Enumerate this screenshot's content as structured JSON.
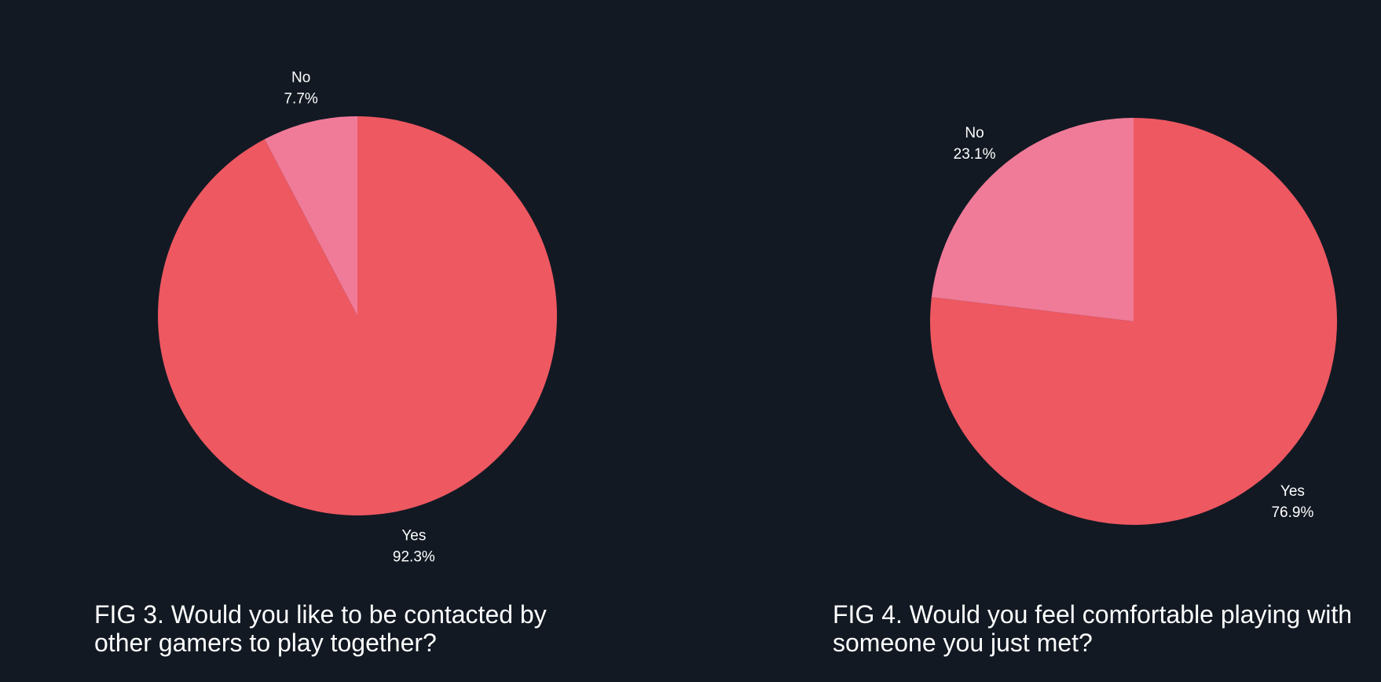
{
  "chart_data": [
    {
      "type": "pie",
      "title_lines": [
        "FIG 3. Would you like to be contacted by",
        "other gamers to play together?"
      ],
      "slices": [
        {
          "label": "Yes",
          "value": 92.3,
          "value_label": "92.3%",
          "color": "#ee5861"
        },
        {
          "label": "No",
          "value": 7.7,
          "value_label": "7.7%",
          "color": "#f07b98"
        }
      ],
      "start_angle": "12 o'clock",
      "direction": "clockwise",
      "label_position": "outside"
    },
    {
      "type": "pie",
      "title_lines": [
        "FIG 4. Would you feel comfortable playing with",
        "someone you just met?"
      ],
      "slices": [
        {
          "label": "Yes",
          "value": 76.9,
          "value_label": "76.9%",
          "color": "#ee5861"
        },
        {
          "label": "No",
          "value": 23.1,
          "value_label": "23.1%",
          "color": "#f07b98"
        }
      ],
      "start_angle": "12 o'clock",
      "direction": "clockwise",
      "label_position": "outside"
    }
  ]
}
